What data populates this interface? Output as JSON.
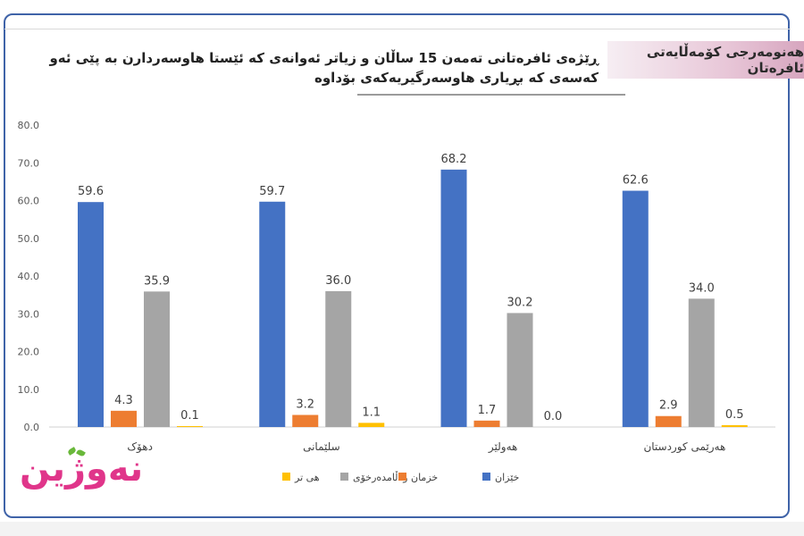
{
  "header_badge": "هەنومەرجی کۆمەڵایەتی ئافرەتان",
  "title": "ڕێژەی ئافرەتانی تەمەن 15 ساڵان و زیاتر ئەوانەی کە ئێستا هاوسەردارن بە پێی ئەو کەسەی کە بڕیاری هاوسەرگیریەکەی بۆداوە",
  "logo": "نەوژین",
  "chart_data": {
    "type": "bar",
    "categories": [
      "دهۆک",
      "سلێمانی",
      "هەولێر",
      "هەرێمی کوردستان"
    ],
    "series": [
      {
        "name": "خێزان",
        "color": "#4472c4",
        "values": [
          59.6,
          59.7,
          68.2,
          62.6
        ]
      },
      {
        "name": "خزمان",
        "color": "#ed7d31",
        "values": [
          4.3,
          3.2,
          1.7,
          2.9
        ]
      },
      {
        "name": "وەڵامدەرخۆی",
        "color": "#a5a5a5",
        "values": [
          35.9,
          36.0,
          30.2,
          34.0
        ]
      },
      {
        "name": "هی تر",
        "color": "#ffc000",
        "values": [
          0.1,
          1.1,
          0.0,
          0.5
        ]
      }
    ],
    "yticks": [
      "0.0",
      "10.0",
      "20.0",
      "30.0",
      "40.0",
      "50.0",
      "60.0",
      "70.0",
      "80.0"
    ],
    "ylim": [
      0,
      80
    ],
    "grid": false,
    "legend": "bottom"
  }
}
